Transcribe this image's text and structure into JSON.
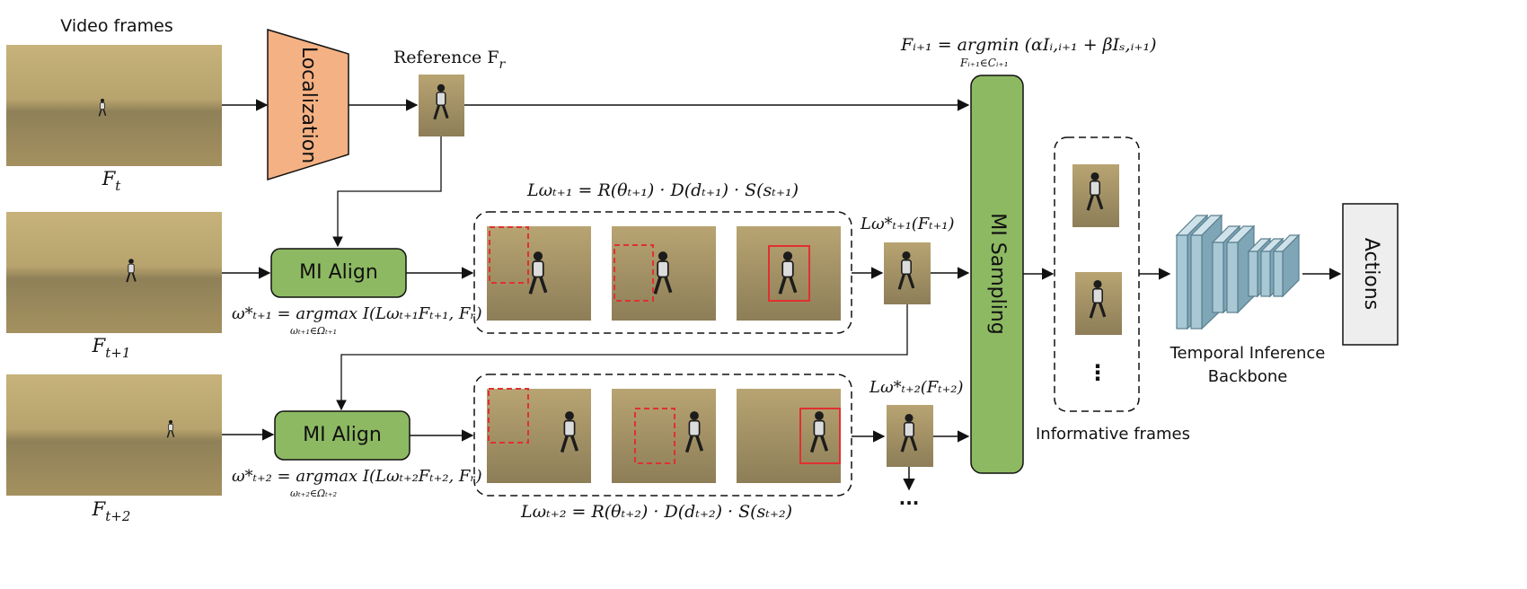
{
  "labels": {
    "video_frames": "Video frames",
    "ft": "F",
    "ft_sub": "t",
    "ft1": "F",
    "ft1_sub": "t+1",
    "ft2": "F",
    "ft2_sub": "t+2",
    "localization": "Localization",
    "reference": "Reference F",
    "reference_sub": "r",
    "mi_align_1": "MI Align",
    "mi_align_2": "MI Align",
    "mi_sampling": "MI Sampling",
    "informative_frames": "Informative frames",
    "backbone_line1": "Temporal Inference",
    "backbone_line2": "Backbone",
    "actions": "Actions",
    "ellipsis_vertical": "⋮",
    "ellipsis_bottom": "..."
  },
  "formulas": {
    "sampling": "F_{i+1} = argmin (αI_{i,i+1} + βI_{s,i+1}), F_{i+1}∈C_{i+1}",
    "sampling_main": "Fᵢ₊₁ = argmin (αIᵢ,ᵢ₊₁ + βIₛ,ᵢ₊₁)",
    "sampling_sub": "Fᵢ₊₁∈Cᵢ₊₁",
    "l_omega_t1": "L_{ω_{t+1}} = R(θ_{t+1}) · D(d_{t+1}) · S(s_{t+1})",
    "l_omega_t1_text": "Lωₜ₊₁ = R(θₜ₊₁) · D(dₜ₊₁) · S(sₜ₊₁)",
    "l_omega_t2_text": "Lωₜ₊₂ = R(θₜ₊₂) · D(dₜ₊₂) · S(sₜ₊₂)",
    "omega_t1_text": "ω*ₜ₊₁ = argmax I(Lωₜ₊₁Fₜ₊₁, Fᵣ)",
    "omega_t1_sub": "ωₜ₊₁∈Ωₜ₊₁",
    "omega_t2_text": "ω*ₜ₊₂ = argmax I(Lωₜ₊₂Fₜ₊₂, Fᵣ)",
    "omega_t2_sub": "ωₜ₊₂∈Ωₜ₊₂",
    "l_star_t1_text": "Lω*ₜ₊₁(Fₜ₊₁)",
    "l_star_t2_text": "Lω*ₜ₊₂(Fₜ₊₂)"
  },
  "colors": {
    "localization_fill": "#f4b183",
    "mi_fill": "#8db962",
    "field_light": "#b9a76e",
    "field_dark": "#8a7a55",
    "crop_box_dashed": "#e03030",
    "crop_box_solid": "#e03030",
    "backbone_fill": "#a9c8d6",
    "backbone_stroke": "#5a7e8e",
    "actions_fill": "#eeeeee"
  }
}
